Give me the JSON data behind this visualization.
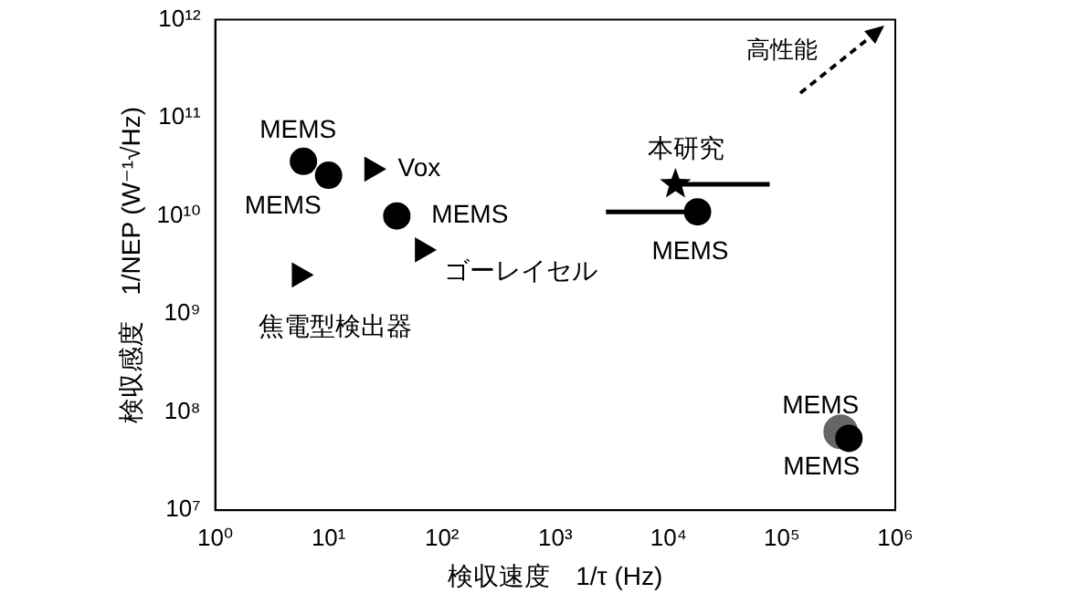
{
  "chart_data": {
    "type": "scatter",
    "xlabel": "検収速度　1/τ (Hz)",
    "ylabel": "検収感度　1/NEP (W⁻¹√Hz)",
    "log": "xy",
    "grid": false,
    "legend": false,
    "xlim": [
      1,
      1000000
    ],
    "xticks": [
      {
        "value": 1,
        "label": "10⁰"
      },
      {
        "value": 10,
        "label": "10¹"
      },
      {
        "value": 100,
        "label": "10²"
      },
      {
        "value": 1000,
        "label": "10³"
      },
      {
        "value": 10000,
        "label": "10⁴"
      },
      {
        "value": 100000,
        "label": "10⁵"
      },
      {
        "value": 1000000,
        "label": "10⁶"
      }
    ],
    "ylim": [
      10000000,
      1000000000000
    ],
    "yticks": [
      {
        "value": 10000000,
        "label": "10⁷"
      },
      {
        "value": 100000000,
        "label": "10⁸"
      },
      {
        "value": 1000000000,
        "label": "10⁹"
      },
      {
        "value": 10000000000,
        "label": "10¹⁰"
      },
      {
        "value": 100000000000,
        "label": "10¹¹"
      },
      {
        "value": 1000000000000,
        "label": "10¹²"
      }
    ],
    "series": [
      {
        "color": "#000000",
        "marker": "circle",
        "x": [
          6,
          10,
          40,
          18000,
          390000
        ],
        "values": [
          36000000000,
          26000000000,
          10000000000,
          11000000000,
          54000000
        ],
        "xerrors": [
          null,
          null,
          null,
          [
            2800,
            18000
          ],
          null
        ]
      },
      {
        "color": "#666666",
        "marker": "circle",
        "x": [
          330000
        ],
        "values": [
          63000000
        ]
      },
      {
        "color": "#000000",
        "marker": "triangle",
        "x": [
          24,
          67,
          5.5
        ],
        "values": [
          30000000000,
          4500000000,
          2500000000
        ]
      },
      {
        "color": "#000000",
        "marker": "star",
        "x": [
          11500
        ],
        "values": [
          21000000000
        ],
        "xerrors": [
          [
            11500,
            78000
          ]
        ]
      }
    ],
    "annotations": [
      {
        "text": "MEMS",
        "x": 6,
        "y": 36000000000
      },
      {
        "text": "MEMS",
        "x": 10,
        "y": 26000000000
      },
      {
        "text": "Vox",
        "x": 24,
        "y": 30000000000
      },
      {
        "text": "MEMS",
        "x": 40,
        "y": 10000000000
      },
      {
        "text": "ゴーレイセル",
        "x": 67,
        "y": 4500000000
      },
      {
        "text": "焦電型検出器",
        "x": 5.5,
        "y": 2500000000
      },
      {
        "text": "本研究",
        "x": 11500,
        "y": 21000000000
      },
      {
        "text": "MEMS",
        "x": 18000,
        "y": 11000000000
      },
      {
        "text": "MEMS",
        "x": 330000,
        "y": 63000000
      },
      {
        "text": "MEMS",
        "x": 390000,
        "y": 54000000
      },
      "高性能"
    ]
  }
}
